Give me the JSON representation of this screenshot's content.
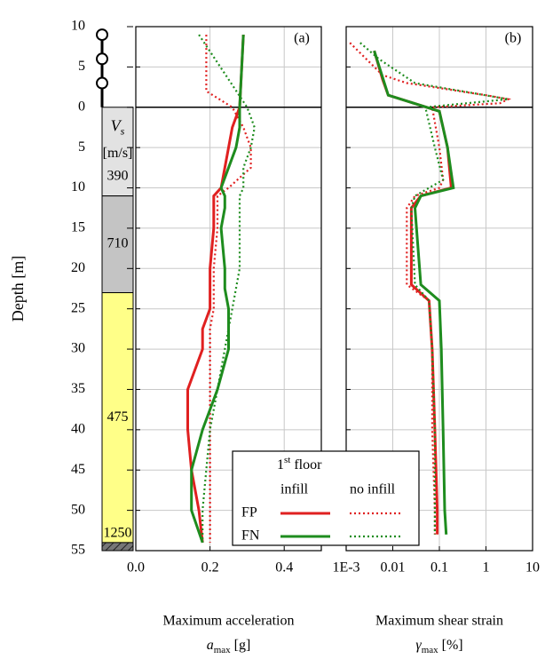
{
  "chart_data": {
    "type": "line",
    "ylabel": "Depth [m]",
    "ylim": [
      -10,
      55
    ],
    "yticks": [
      {
        "value": -10,
        "label": "10"
      },
      {
        "value": -5,
        "label": "5"
      },
      0,
      5,
      10,
      15,
      20,
      25,
      30,
      35,
      40,
      45,
      50,
      55
    ],
    "grid": true,
    "ground_line": 0,
    "soil_column": {
      "header_symbol": "V",
      "header_subscript": "s",
      "header_unit": "[m/s]",
      "nodes": [
        -9,
        -6,
        -3
      ],
      "layers": [
        {
          "top": 0,
          "bottom": 11,
          "label": "390",
          "color": "#e2e2e2"
        },
        {
          "top": 11,
          "bottom": 23,
          "label": "710",
          "color": "#c4c4c4"
        },
        {
          "top": 23,
          "bottom": 54,
          "label": "475",
          "color": "#ffff88"
        },
        {
          "top": 54,
          "bottom": 55,
          "label": "1250",
          "color": "#555555",
          "hatch": true
        }
      ]
    },
    "legend": {
      "title_parts": [
        "1",
        "st",
        "floor"
      ],
      "columns": [
        "infill",
        "no infill"
      ],
      "rows": [
        "FP",
        "FN"
      ]
    },
    "panels": [
      {
        "label": "(a)",
        "xlabel": "Maximum acceleration",
        "xlabel_symbol": "a",
        "xlabel_subscript": "max",
        "xlabel_unit": "[g]",
        "log": false,
        "xlim": [
          0,
          0.5
        ],
        "xticks": [
          {
            "value": 0,
            "label": "0.0"
          },
          0.2,
          0.4
        ],
        "series": [
          {
            "color": "#e02020",
            "dash": "solid",
            "y": [
              -9,
              0,
              2.5,
              5,
              7.5,
              10,
              11,
              12.5,
              15,
              20,
              22.5,
              25,
              27.5,
              30,
              35,
              40,
              45,
              50,
              54
            ],
            "values": [
              0.29,
              0.28,
              0.26,
              0.25,
              0.24,
              0.23,
              0.21,
              0.21,
              0.21,
              0.2,
              0.2,
              0.2,
              0.18,
              0.18,
              0.14,
              0.14,
              0.15,
              0.17,
              0.18
            ]
          },
          {
            "color": "#e02020",
            "dash": "dotted",
            "y": [
              -9,
              -2,
              0,
              2.5,
              5,
              7.5,
              10,
              11,
              15,
              20,
              22.5,
              25,
              27.5,
              30,
              35,
              40,
              45,
              50,
              54
            ],
            "values": [
              0.19,
              0.19,
              0.26,
              0.29,
              0.31,
              0.31,
              0.25,
              0.22,
              0.22,
              0.21,
              0.21,
              0.21,
              0.2,
              0.2,
              0.2,
              0.2,
              0.2,
              0.2,
              0.2
            ]
          },
          {
            "color": "#1e8c1e",
            "dash": "solid",
            "y": [
              -9,
              0,
              2.5,
              5,
              7.5,
              10,
              11,
              12.5,
              15,
              20,
              22.5,
              25,
              27.5,
              30,
              35,
              40,
              45,
              50,
              54
            ],
            "values": [
              0.29,
              0.28,
              0.28,
              0.27,
              0.25,
              0.23,
              0.24,
              0.24,
              0.23,
              0.24,
              0.24,
              0.25,
              0.25,
              0.25,
              0.22,
              0.18,
              0.15,
              0.15,
              0.18
            ]
          },
          {
            "color": "#1e8c1e",
            "dash": "dotted",
            "y": [
              -9,
              0,
              2.5,
              5,
              7.5,
              10,
              11,
              15,
              20,
              25,
              30,
              35,
              40,
              45,
              50,
              54
            ],
            "values": [
              0.17,
              0.3,
              0.32,
              0.31,
              0.29,
              0.29,
              0.28,
              0.28,
              0.28,
              0.26,
              0.24,
              0.22,
              0.2,
              0.19,
              0.18,
              0.18
            ]
          }
        ]
      },
      {
        "label": "(b)",
        "xlabel": "Maximum shear strain",
        "xlabel_symbol": "γ",
        "xlabel_subscript": "max",
        "xlabel_unit": "[%]",
        "log": true,
        "xlim": [
          0.001,
          10
        ],
        "xticks": [
          {
            "value": 0.001,
            "label": "1E-3"
          },
          0.01,
          0.1,
          1,
          10
        ],
        "series": [
          {
            "color": "#e02020",
            "dash": "solid",
            "y": [
              -7,
              -3.5,
              -1.5,
              0.5,
              5,
              10,
              11,
              12.5,
              22,
              24,
              30,
              40,
              50,
              53
            ],
            "values": [
              0.004,
              0.006,
              0.008,
              0.1,
              0.15,
              0.18,
              0.04,
              0.025,
              0.025,
              0.06,
              0.07,
              0.08,
              0.09,
              0.09
            ]
          },
          {
            "color": "#e02020",
            "dash": "dotted",
            "y": [
              -8,
              -4,
              -3,
              -1.5,
              -1,
              -0.5,
              0,
              5,
              9,
              10,
              11,
              12.5,
              22,
              24,
              30,
              40,
              50,
              53
            ],
            "values": [
              0.0012,
              0.006,
              0.02,
              1,
              3,
              2,
              0.07,
              0.1,
              0.12,
              0.1,
              0.03,
              0.02,
              0.02,
              0.06,
              0.07,
              0.07,
              0.08,
              0.08
            ]
          },
          {
            "color": "#1e8c1e",
            "dash": "solid",
            "y": [
              -7,
              -1.5,
              0.5,
              5,
              10,
              11,
              12.5,
              22,
              24,
              30,
              40,
              50,
              53
            ],
            "values": [
              0.004,
              0.008,
              0.1,
              0.15,
              0.2,
              0.04,
              0.03,
              0.04,
              0.1,
              0.11,
              0.12,
              0.13,
              0.14
            ]
          },
          {
            "color": "#1e8c1e",
            "dash": "dotted",
            "y": [
              -8,
              -6,
              -3,
              -1,
              0,
              5,
              9,
              11,
              12.5,
              22,
              24,
              30,
              40,
              50,
              53
            ],
            "values": [
              0.002,
              0.005,
              0.03,
              3,
              0.05,
              0.08,
              0.12,
              0.03,
              0.025,
              0.03,
              0.06,
              0.07,
              0.08,
              0.08,
              0.08
            ]
          }
        ]
      }
    ]
  }
}
